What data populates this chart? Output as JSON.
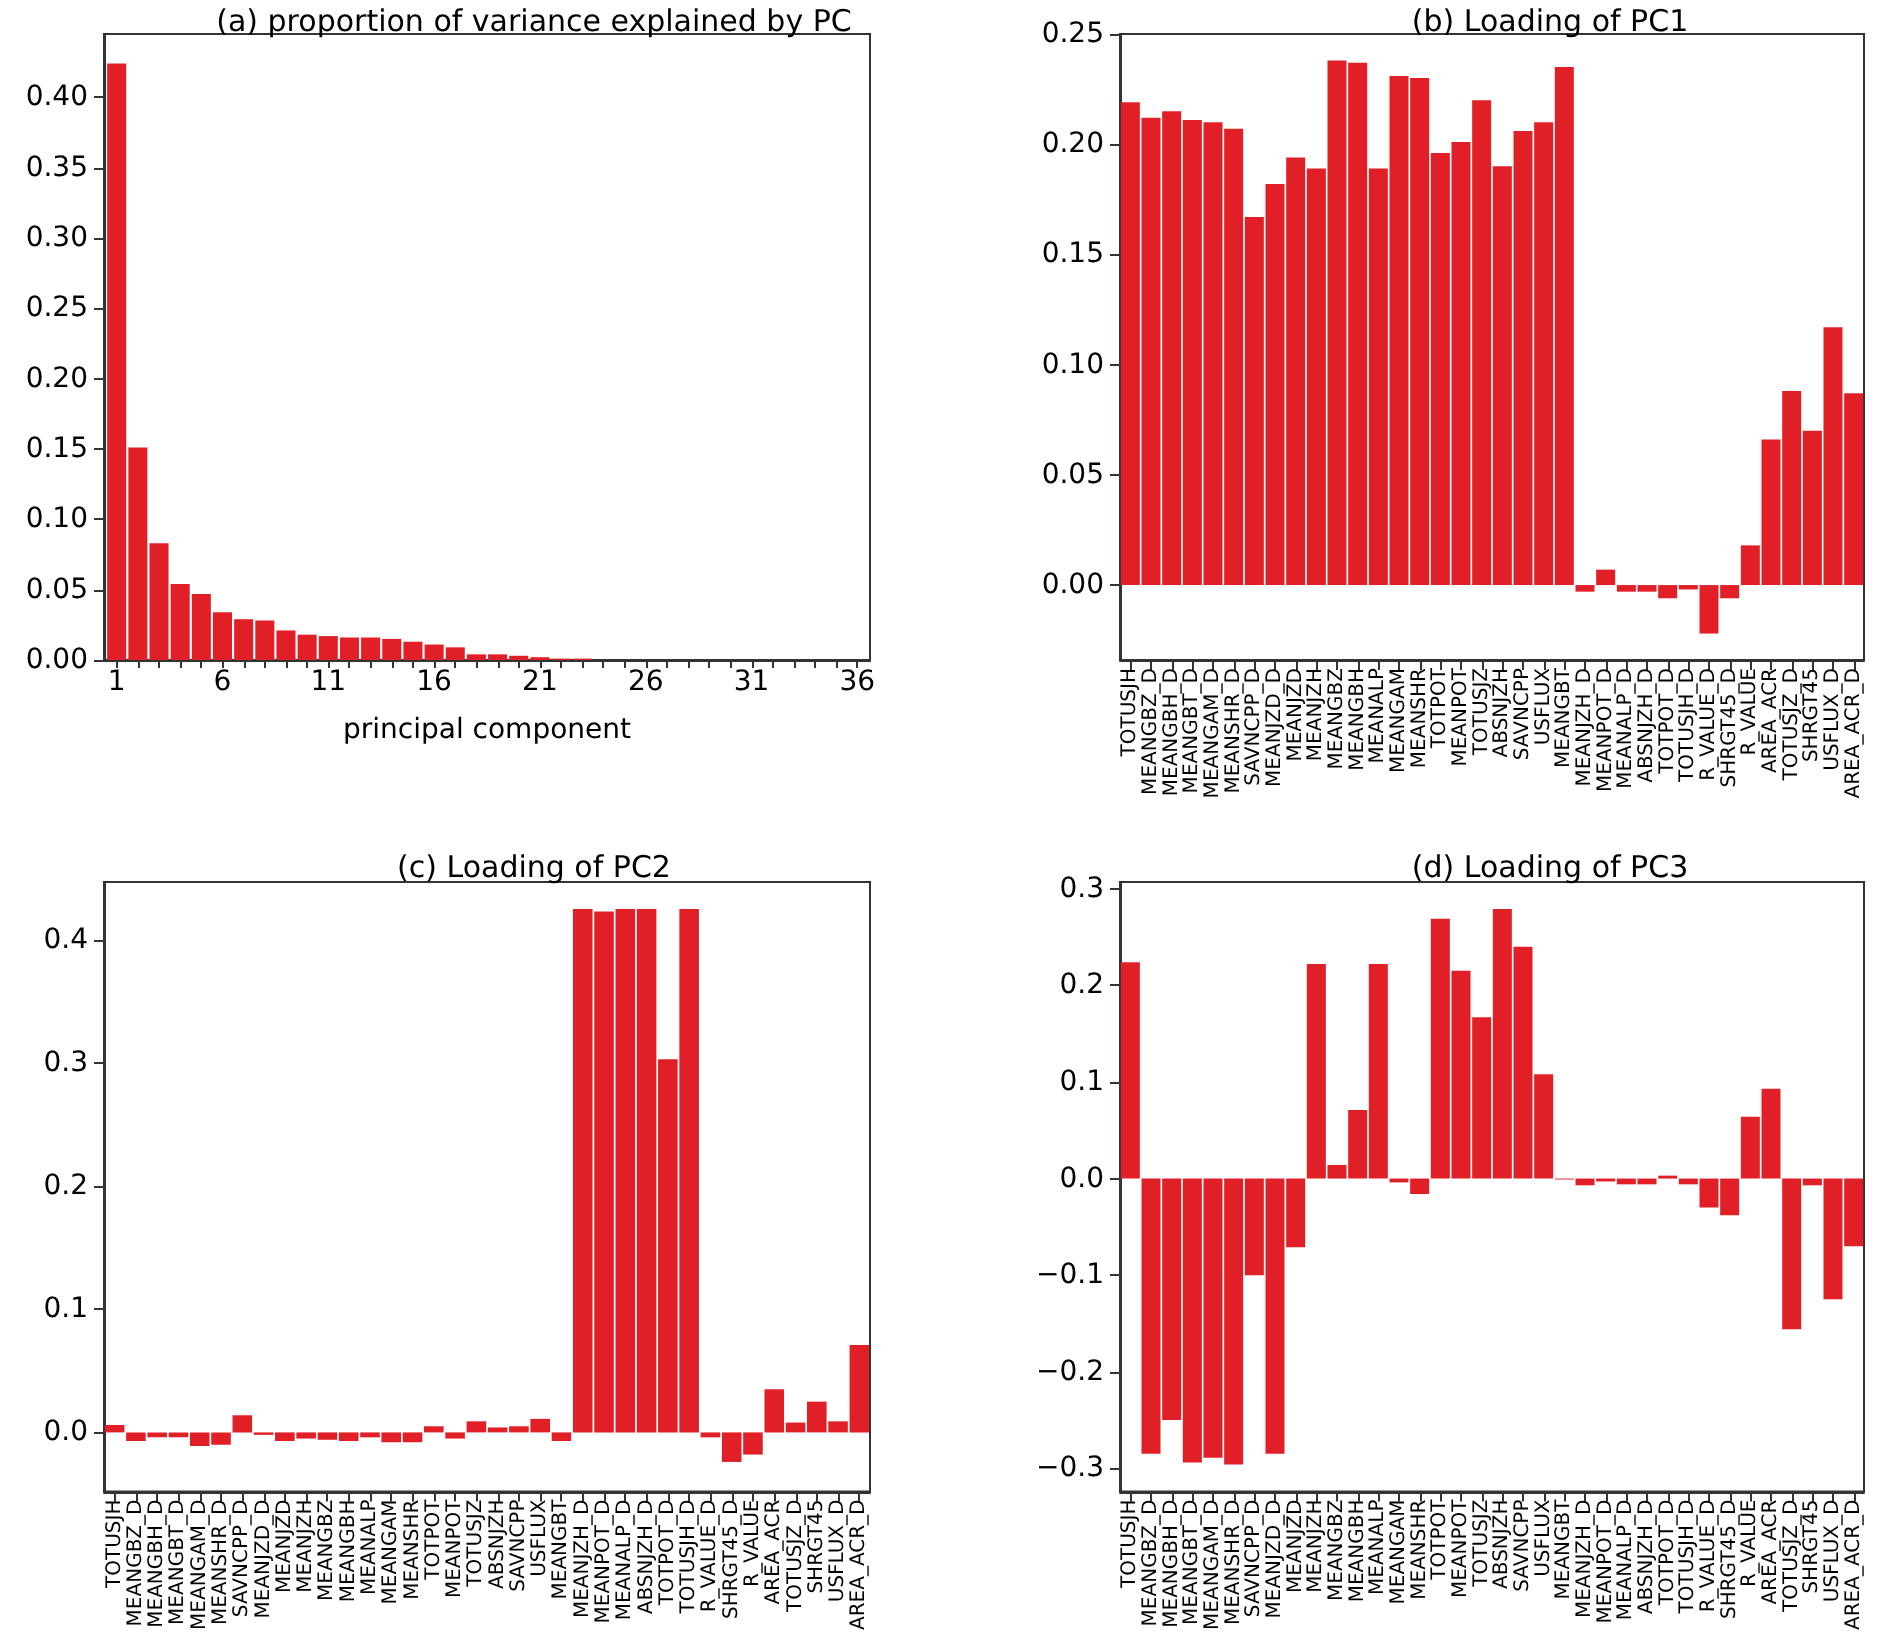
{
  "chart_data": [
    {
      "type": "bar",
      "title": "(a) proportion of variance explained by PC",
      "xlabel": "principal component",
      "color": "#e02026",
      "x": [
        1,
        2,
        3,
        4,
        5,
        6,
        7,
        8,
        9,
        10,
        11,
        12,
        13,
        14,
        15,
        16,
        17,
        18,
        19,
        20,
        21,
        22,
        23,
        24,
        25,
        26,
        27,
        28,
        29,
        30,
        31,
        32,
        33,
        34,
        35,
        36
      ],
      "xlim": [
        0.4,
        36.6
      ],
      "xticks": [
        1,
        {
          "value": 2,
          "label": null
        },
        {
          "value": 3,
          "label": null
        },
        {
          "value": 4,
          "label": null
        },
        {
          "value": 5,
          "label": null
        },
        6,
        {
          "value": 7,
          "label": null
        },
        {
          "value": 8,
          "label": null
        },
        {
          "value": 9,
          "label": null
        },
        {
          "value": 10,
          "label": null
        },
        11,
        {
          "value": 12,
          "label": null
        },
        {
          "value": 13,
          "label": null
        },
        {
          "value": 14,
          "label": null
        },
        {
          "value": 15,
          "label": null
        },
        16,
        {
          "value": 17,
          "label": null
        },
        {
          "value": 18,
          "label": null
        },
        {
          "value": 19,
          "label": null
        },
        {
          "value": 20,
          "label": null
        },
        21,
        {
          "value": 22,
          "label": null
        },
        {
          "value": 23,
          "label": null
        },
        {
          "value": 24,
          "label": null
        },
        {
          "value": 25,
          "label": null
        },
        26,
        {
          "value": 27,
          "label": null
        },
        {
          "value": 28,
          "label": null
        },
        {
          "value": 29,
          "label": null
        },
        {
          "value": 30,
          "label": null
        },
        31,
        {
          "value": 32,
          "label": null
        },
        {
          "value": 33,
          "label": null
        },
        {
          "value": 34,
          "label": null
        },
        {
          "value": 35,
          "label": null
        },
        36
      ],
      "values": [
        0.424,
        0.151,
        0.083,
        0.054,
        0.047,
        0.034,
        0.029,
        0.028,
        0.021,
        0.018,
        0.017,
        0.016,
        0.016,
        0.015,
        0.013,
        0.011,
        0.009,
        0.004,
        0.004,
        0.003,
        0.002,
        0.001,
        0.001,
        0,
        0,
        0,
        0,
        0,
        0,
        0,
        0,
        0,
        0,
        0,
        0,
        0
      ],
      "ylim": [
        0,
        0.445
      ],
      "yticks": [
        {
          "value": 0,
          "label": "0.00"
        },
        {
          "value": 0.05,
          "label": "0.05"
        },
        {
          "value": 0.1,
          "label": "0.10"
        },
        {
          "value": 0.15,
          "label": "0.15"
        },
        {
          "value": 0.2,
          "label": "0.20"
        },
        {
          "value": 0.25,
          "label": "0.25"
        },
        {
          "value": 0.3,
          "label": "0.30"
        },
        {
          "value": 0.35,
          "label": "0.35"
        },
        {
          "value": 0.4,
          "label": "0.40"
        }
      ],
      "grid": false
    },
    {
      "type": "bar",
      "title": "(b) Loading of PC1",
      "color": "#e02026",
      "categories": [
        "TOTUSJH",
        "MEANGBZ_D",
        "MEANGBH_D",
        "MEANGBT_D",
        "MEANGAM_D",
        "MEANSHR_D",
        "SAVNCPP_D",
        "MEANJZD_D",
        "MEANJZD",
        "MEANJZH",
        "MEANGBZ",
        "MEANGBH",
        "MEANALP",
        "MEANGAM",
        "MEANSHR",
        "TOTPOT",
        "MEANPOT",
        "TOTUSJZ",
        "ABSNJZH",
        "SAVNCPP",
        "USFLUX",
        "MEANGBT",
        "MEANJZH_D",
        "MEANPOT_D",
        "MEANALP_D",
        "ABSNJZH_D",
        "TOTPOT_D",
        "TOTUSJH_D",
        "R_VALUE_D",
        "SHRGT45_D",
        "R_VALUE",
        "AREA_ACR",
        "TOTUSJZ_D",
        "SHRGT45",
        "USFLUX_D",
        "AREA_ACR_D"
      ],
      "values": [
        0.219,
        0.212,
        0.215,
        0.211,
        0.21,
        0.207,
        0.167,
        0.182,
        0.194,
        0.189,
        0.238,
        0.237,
        0.189,
        0.231,
        0.23,
        0.196,
        0.201,
        0.22,
        0.19,
        0.206,
        0.21,
        0.235,
        -0.003,
        0.007,
        -0.003,
        -0.003,
        -0.006,
        -0.002,
        -0.022,
        -0.006,
        0.018,
        0.066,
        0.088,
        0.07,
        0.117,
        0.087
      ],
      "ylim": [
        -0.034,
        0.25
      ],
      "yticks": [
        {
          "value": 0,
          "label": "0.00"
        },
        {
          "value": 0.05,
          "label": "0.05"
        },
        {
          "value": 0.1,
          "label": "0.10"
        },
        {
          "value": 0.15,
          "label": "0.15"
        },
        {
          "value": 0.2,
          "label": "0.20"
        },
        {
          "value": 0.25,
          "label": "0.25"
        }
      ],
      "grid": false
    },
    {
      "type": "bar",
      "title": "(c) Loading of PC2",
      "color": "#e02026",
      "categories": [
        "TOTUSJH",
        "MEANGBZ_D",
        "MEANGBH_D",
        "MEANGBT_D",
        "MEANGAM_D",
        "MEANSHR_D",
        "SAVNCPP_D",
        "MEANJZD_D",
        "MEANJZD",
        "MEANJZH",
        "MEANGBZ",
        "MEANGBH",
        "MEANALP",
        "MEANGAM",
        "MEANSHR",
        "TOTPOT",
        "MEANPOT",
        "TOTUSJZ",
        "ABSNJZH",
        "SAVNCPP",
        "USFLUX",
        "MEANGBT",
        "MEANJZH_D",
        "MEANPOT_D",
        "MEANALP_D",
        "ABSNJZH_D",
        "TOTPOT_D",
        "TOTUSJH_D",
        "R_VALUE_D",
        "SHRGT45_D",
        "R_VALUE",
        "AREA_ACR",
        "TOTUSJZ_D",
        "SHRGT45",
        "USFLUX_D",
        "AREA_ACR_D"
      ],
      "values": [
        0.006,
        -0.007,
        -0.004,
        -0.004,
        -0.011,
        -0.01,
        0.014,
        -0.002,
        -0.007,
        -0.005,
        -0.006,
        -0.007,
        -0.004,
        -0.008,
        -0.008,
        0.005,
        -0.005,
        0.009,
        0.004,
        0.005,
        0.011,
        -0.007,
        0.425,
        0.423,
        0.425,
        0.425,
        0.303,
        0.425,
        -0.004,
        -0.024,
        -0.018,
        0.035,
        0.008,
        0.025,
        0.009,
        0.071
      ],
      "ylim": [
        -0.048,
        0.447
      ],
      "yticks": [
        {
          "value": 0,
          "label": "0.0"
        },
        {
          "value": 0.1,
          "label": "0.1"
        },
        {
          "value": 0.2,
          "label": "0.2"
        },
        {
          "value": 0.3,
          "label": "0.3"
        },
        {
          "value": 0.4,
          "label": "0.4"
        }
      ],
      "grid": false
    },
    {
      "type": "bar",
      "title": "(d) Loading of PC3",
      "color": "#e02026",
      "categories": [
        "TOTUSJH",
        "MEANGBZ_D",
        "MEANGBH_D",
        "MEANGBT_D",
        "MEANGAM_D",
        "MEANSHR_D",
        "SAVNCPP_D",
        "MEANJZD_D",
        "MEANJZD",
        "MEANJZH",
        "MEANGBZ",
        "MEANGBH",
        "MEANALP",
        "MEANGAM",
        "MEANSHR",
        "TOTPOT",
        "MEANPOT",
        "TOTUSJZ",
        "ABSNJZH",
        "SAVNCPP",
        "USFLUX",
        "MEANGBT",
        "MEANJZH_D",
        "MEANPOT_D",
        "MEANALP_D",
        "ABSNJZH_D",
        "TOTPOT_D",
        "TOTUSJH_D",
        "R_VALUE_D",
        "SHRGT45_D",
        "R_VALUE",
        "AREA_ACR",
        "TOTUSJZ_D",
        "SHRGT45",
        "USFLUX_D",
        "AREA_ACR_D"
      ],
      "values": [
        0.224,
        -0.285,
        -0.25,
        -0.294,
        -0.289,
        -0.296,
        -0.1,
        -0.285,
        -0.071,
        0.222,
        0.014,
        0.071,
        0.222,
        -0.004,
        -0.016,
        0.269,
        0.215,
        0.167,
        0.279,
        0.24,
        0.108,
        -0.001,
        -0.007,
        -0.003,
        -0.006,
        -0.006,
        0.003,
        -0.006,
        -0.03,
        -0.038,
        0.064,
        0.093,
        -0.156,
        -0.007,
        -0.125,
        -0.07
      ],
      "ylim": [
        -0.324,
        0.307
      ],
      "yticks": [
        {
          "value": -0.3,
          "label": "−0.3"
        },
        {
          "value": -0.2,
          "label": "−0.2"
        },
        {
          "value": -0.1,
          "label": "−0.1"
        },
        {
          "value": 0,
          "label": "0.0"
        },
        {
          "value": 0.1,
          "label": "0.1"
        },
        {
          "value": 0.2,
          "label": "0.2"
        },
        {
          "value": 0.3,
          "label": "0.3"
        }
      ],
      "grid": false
    }
  ]
}
